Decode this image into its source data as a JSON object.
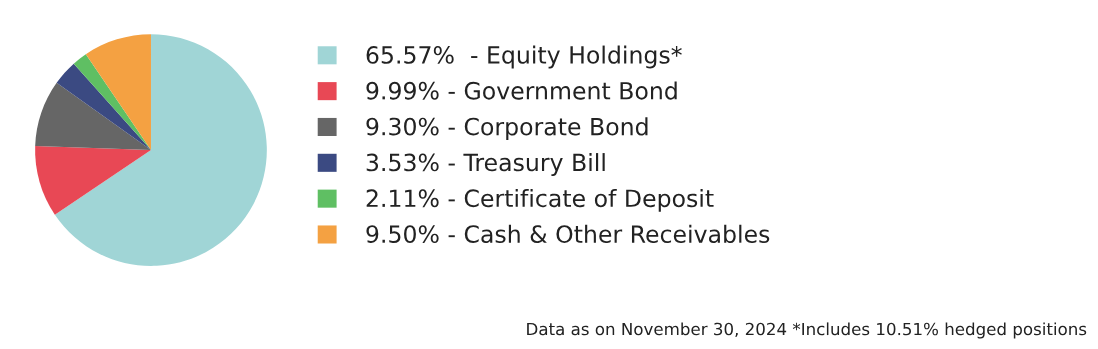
{
  "chart_data": {
    "type": "pie",
    "categories": [
      "Equity Holdings*",
      "Government Bond",
      "Corporate Bond",
      "Treasury Bill",
      "Certificate of Deposit",
      "Cash & Other Receivables"
    ],
    "values": [
      65.57,
      9.99,
      9.3,
      3.53,
      2.11,
      9.5
    ],
    "value_labels": [
      "65.57% ",
      "9.99%",
      "9.30%",
      "3.53%",
      "2.11%",
      "9.50%"
    ],
    "colors": [
      "#a0d5d6",
      "#e84855",
      "#666666",
      "#3b4a82",
      "#5fbf63",
      "#f4a142"
    ],
    "legend": "right",
    "annotations": [
      "Data as on November 30, 2024 *Includes 10.51% hedged positions"
    ]
  }
}
